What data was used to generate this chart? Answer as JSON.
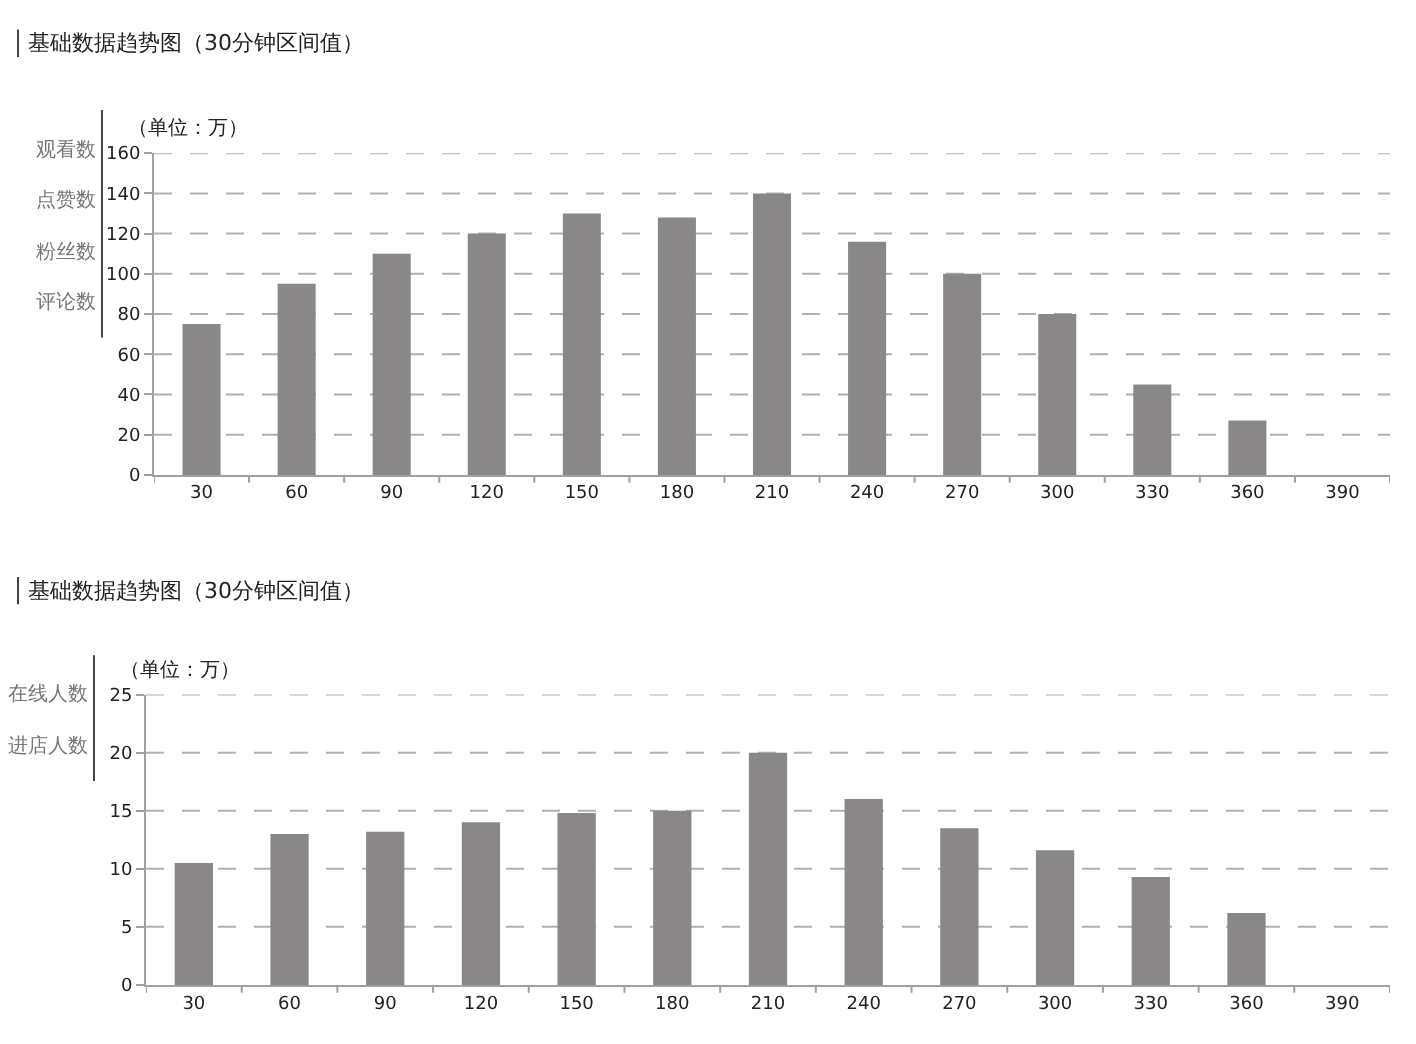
{
  "chart_data": [
    {
      "type": "bar",
      "title": "基础数据趋势图（30分钟区间值）",
      "ylabel": "（单位：万）",
      "annotations": [
        "观看数",
        "点赞数",
        "粉丝数",
        "评论数"
      ],
      "categories": [
        "30",
        "60",
        "90",
        "120",
        "150",
        "180",
        "210",
        "240",
        "270",
        "300",
        "330",
        "360",
        "390"
      ],
      "series": [
        {
          "color": "#898787",
          "values": [
            75,
            95,
            110,
            120,
            130,
            128,
            140,
            116,
            100,
            80,
            45,
            27,
            null
          ]
        }
      ],
      "ylim": [
        0,
        160
      ],
      "yticks": [
        0,
        20,
        40,
        60,
        80,
        100,
        120,
        140,
        160
      ],
      "grid": "y"
    },
    {
      "type": "bar",
      "title": "基础数据趋势图（30分钟区间值）",
      "ylabel": "（单位：万）",
      "annotations": [
        "在线人数",
        "进店人数"
      ],
      "categories": [
        "30",
        "60",
        "90",
        "120",
        "150",
        "180",
        "210",
        "240",
        "270",
        "300",
        "330",
        "360",
        "390"
      ],
      "series": [
        {
          "color": "#898787",
          "values": [
            10.5,
            13,
            13.2,
            14,
            14.8,
            15,
            20,
            16,
            13.5,
            11.6,
            9.3,
            6.2,
            null
          ]
        }
      ],
      "ylim": [
        0,
        25
      ],
      "yticks": [
        0,
        5,
        10,
        15,
        20,
        25
      ],
      "grid": "y"
    }
  ]
}
